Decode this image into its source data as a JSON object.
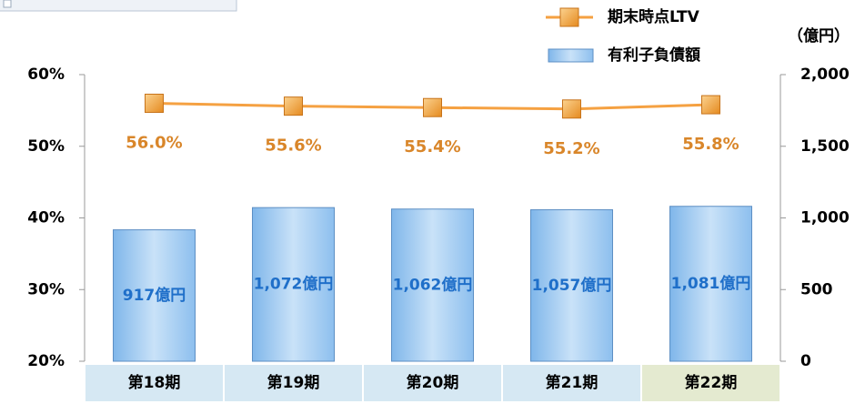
{
  "chart_data": {
    "type": "combo",
    "categories": [
      "第18期",
      "第19期",
      "第20期",
      "第21期",
      "第22期"
    ],
    "series": [
      {
        "name": "有利子負債額",
        "type": "bar",
        "axis": "y2",
        "color": "#9cc8f0",
        "values": [
          917,
          1072,
          1062,
          1057,
          1081
        ],
        "value_labels": [
          "917億円",
          "1,072億円",
          "1,062億円",
          "1,057億円",
          "1,081億円"
        ]
      },
      {
        "name": "期末時点LTV",
        "type": "line",
        "axis": "y",
        "color": "#f5a142",
        "values": [
          56.0,
          55.6,
          55.4,
          55.2,
          55.8
        ],
        "value_labels": [
          "56.0%",
          "55.6%",
          "55.4%",
          "55.2%",
          "55.8%"
        ]
      }
    ],
    "ylim": [
      20,
      60
    ],
    "yticks": [
      {
        "value": 20,
        "label": "20%"
      },
      {
        "value": 30,
        "label": "30%"
      },
      {
        "value": 40,
        "label": "40%"
      },
      {
        "value": 50,
        "label": "50%"
      },
      {
        "value": 60,
        "label": "60%"
      }
    ],
    "y2lim": [
      0,
      2000
    ],
    "y2ticks": [
      0,
      500,
      {
        "value": 1000,
        "label": "1,000"
      },
      {
        "value": 1500,
        "label": "1,500"
      },
      {
        "value": 2000,
        "label": "2,000"
      }
    ],
    "y2_label": "（億円）",
    "grid": false
  }
}
